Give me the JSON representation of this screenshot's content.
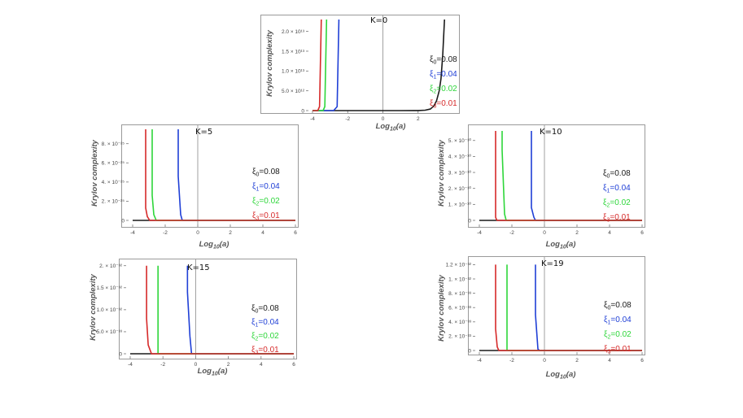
{
  "chart_data": [
    {
      "type": "line",
      "kappa_label": "K=0",
      "ylabel": "Krylov complexity",
      "xlabel": "Log10(a)",
      "xlim": [
        -4,
        4
      ],
      "xticks": [
        -4,
        -2,
        0,
        2
      ],
      "ylim": [
        0,
        23000000000000.0
      ],
      "yticks": [
        0,
        5000000000000.0,
        10000000000000.0,
        15000000000000.0,
        20000000000000.0
      ],
      "ytick_labels": [
        "0",
        "5.0 × 10¹²",
        "1.0 × 10¹³",
        "1.5 × 10¹³",
        "2.0 × 10¹³"
      ],
      "series": [
        {
          "name": "ξ0=0.08",
          "sub": "0",
          "val": "=0.08",
          "color": "#1a1a1a",
          "x": [
            -4,
            1.0,
            2.0,
            2.4,
            2.7,
            2.9,
            3.05,
            3.2,
            3.3,
            3.4,
            3.5
          ],
          "y": [
            0,
            0,
            10000000000.0,
            100000000000.0,
            400000000000.0,
            1200000000000.0,
            2500000000000.0,
            5000000000000.0,
            8000000000000.0,
            14000000000000.0,
            23000000000000.0
          ]
        },
        {
          "name": "ξ1=0.04",
          "sub": "1",
          "val": "=0.04",
          "color": "#1f3fd6",
          "x": [
            -4,
            -2.8,
            -2.6,
            -2.5
          ],
          "y": [
            0,
            0,
            1000000000000.0,
            23000000000000.0
          ]
        },
        {
          "name": "ξ2=0.02",
          "sub": "2",
          "val": "=0.02",
          "color": "#2ed63a",
          "x": [
            -4,
            -3.4,
            -3.3,
            -3.2
          ],
          "y": [
            0,
            0,
            1000000000000.0,
            23000000000000.0
          ]
        },
        {
          "name": "ξ3=0.01",
          "sub": "3",
          "val": "=0.01",
          "color": "#d62a2a",
          "x": [
            -4,
            -3.7,
            -3.6,
            -3.5
          ],
          "y": [
            0,
            0,
            1000000000000.0,
            23000000000000.0
          ]
        }
      ]
    },
    {
      "type": "line",
      "kappa_label": "K=5",
      "ylabel": "Krylov complexity",
      "xlabel": "Log10(a)",
      "xlim": [
        -4,
        6
      ],
      "xticks": [
        -4,
        -2,
        0,
        2,
        4,
        6
      ],
      "ylim": [
        0,
        9.5e-25
      ],
      "yticks": [
        0,
        2e-25,
        4e-25,
        6e-25,
        8e-25
      ],
      "ytick_labels": [
        "0",
        "2. × 10⁻²⁵",
        "4. × 10⁻²⁵",
        "6. × 10⁻²⁵",
        "8. × 10⁻²⁵"
      ],
      "series": [
        {
          "name": "ξ0=0.08",
          "sub": "0",
          "val": "=0.08",
          "color": "#1a1a1a",
          "x": [
            -4,
            6
          ],
          "y": [
            0,
            0
          ]
        },
        {
          "name": "ξ1=0.04",
          "sub": "1",
          "val": "=0.04",
          "color": "#1f3fd6",
          "x": [
            -1.2,
            -1.2,
            -1.05,
            -0.95,
            6
          ],
          "y": [
            9.5e-25,
            4.6e-25,
            6e-26,
            0,
            0
          ]
        },
        {
          "name": "ξ2=0.02",
          "sub": "2",
          "val": "=0.02",
          "color": "#2ed63a",
          "x": [
            -2.8,
            -2.8,
            -2.7,
            -2.55,
            6
          ],
          "y": [
            9.5e-25,
            2.6e-25,
            6e-26,
            0,
            0
          ]
        },
        {
          "name": "ξ3=0.01",
          "sub": "3",
          "val": "=0.01",
          "color": "#d62a2a",
          "x": [
            -3.2,
            -3.2,
            -3.1,
            -2.95,
            6
          ],
          "y": [
            9.5e-25,
            1.3e-25,
            4e-26,
            0,
            0
          ]
        }
      ]
    },
    {
      "type": "line",
      "kappa_label": "K=10",
      "ylabel": "Krylov complexity",
      "xlabel": "Log10(a)",
      "xlim": [
        -4,
        6
      ],
      "xticks": [
        -4,
        -2,
        0,
        2,
        4,
        6
      ],
      "ylim": [
        0,
        5.7e-30
      ],
      "yticks": [
        0,
        1e-30,
        2e-30,
        3e-30,
        4e-30,
        5e-30
      ],
      "ytick_labels": [
        "0",
        "1. × 10⁻³⁰",
        "2. × 10⁻³⁰",
        "3. × 10⁻³⁰",
        "4. × 10⁻³⁰",
        "5. × 10⁻³⁰"
      ],
      "series": [
        {
          "name": "ξ0=0.08",
          "sub": "0",
          "val": "=0.08",
          "color": "#1a1a1a",
          "x": [
            -4,
            6
          ],
          "y": [
            0,
            0
          ]
        },
        {
          "name": "ξ1=0.04",
          "sub": "1",
          "val": "=0.04",
          "color": "#1f3fd6",
          "x": [
            -0.8,
            -0.8,
            -0.65,
            -0.55,
            6
          ],
          "y": [
            5.6e-30,
            8e-31,
            2e-31,
            0,
            0
          ]
        },
        {
          "name": "ξ2=0.02",
          "sub": "2",
          "val": "=0.02",
          "color": "#2ed63a",
          "x": [
            -2.6,
            -2.6,
            -2.45,
            -2.35,
            6
          ],
          "y": [
            5.6e-30,
            4.4e-30,
            4e-31,
            0,
            0
          ]
        },
        {
          "name": "ξ3=0.01",
          "sub": "3",
          "val": "=0.01",
          "color": "#d62a2a",
          "x": [
            -3.0,
            -3.0,
            -2.95,
            -2.9,
            6
          ],
          "y": [
            5.6e-30,
            2e-31,
            6e-32,
            0,
            0
          ]
        }
      ]
    },
    {
      "type": "line",
      "kappa_label": "K=15",
      "ylabel": "Krylov complexity",
      "xlabel": "Log10(a)",
      "xlim": [
        -4,
        6
      ],
      "xticks": [
        -4,
        -2,
        0,
        2,
        4,
        6
      ],
      "ylim": [
        0,
        2.05e-32
      ],
      "yticks": [
        0,
        5e-33,
        1e-32,
        1.5e-32,
        2e-32
      ],
      "ytick_labels": [
        "0",
        "5.0 × 10⁻³³",
        "1.0 × 10⁻³²",
        "1.5 × 10⁻³²",
        "2. × 10⁻³²"
      ],
      "series": [
        {
          "name": "ξ0=0.08",
          "sub": "0",
          "val": "=0.08",
          "color": "#1a1a1a",
          "x": [
            -4,
            6
          ],
          "y": [
            0,
            0
          ]
        },
        {
          "name": "ξ1=0.04",
          "sub": "1",
          "val": "=0.04",
          "color": "#1f3fd6",
          "x": [
            -0.5,
            -0.5,
            -0.35,
            -0.25,
            6
          ],
          "y": [
            2e-32,
            1.4e-32,
            4e-33,
            0,
            0
          ]
        },
        {
          "name": "ξ2=0.02",
          "sub": "2",
          "val": "=0.02",
          "color": "#2ed63a",
          "x": [
            -2.3,
            -2.3,
            -2.3,
            6
          ],
          "y": [
            2e-32,
            1e-33,
            0,
            0
          ]
        },
        {
          "name": "ξ3=0.01",
          "sub": "3",
          "val": "=0.01",
          "color": "#d62a2a",
          "x": [
            -3.0,
            -3.0,
            -2.9,
            -2.7,
            6
          ],
          "y": [
            2e-32,
            8e-33,
            2e-33,
            0,
            0
          ]
        }
      ]
    },
    {
      "type": "line",
      "kappa_label": "K=19",
      "ylabel": "Krylov complexity",
      "xlabel": "Log10(a)",
      "xlim": [
        -4,
        6
      ],
      "xticks": [
        -4,
        -2,
        0,
        2,
        4,
        6
      ],
      "ylim": [
        0,
        1.25e-32
      ],
      "yticks": [
        0,
        2e-33,
        4e-33,
        6e-33,
        8e-33,
        1e-32,
        1.2e-32
      ],
      "ytick_labels": [
        "0",
        "2. × 10⁻³³",
        "4. × 10⁻³³",
        "6. × 10⁻³³",
        "8. × 10⁻³³",
        "1. × 10⁻³²",
        "1.2 × 10⁻³²"
      ],
      "series": [
        {
          "name": "ξ0=0.08",
          "sub": "0",
          "val": "=0.08",
          "color": "#1a1a1a",
          "x": [
            -4,
            6
          ],
          "y": [
            0,
            0
          ]
        },
        {
          "name": "ξ1=0.04",
          "sub": "1",
          "val": "=0.04",
          "color": "#1f3fd6",
          "x": [
            -0.55,
            -0.55,
            -0.4,
            -0.3,
            6
          ],
          "y": [
            1.2e-32,
            5e-33,
            2e-34,
            0,
            0
          ]
        },
        {
          "name": "ξ2=0.02",
          "sub": "2",
          "val": "=0.02",
          "color": "#2ed63a",
          "x": [
            -2.3,
            -2.3,
            -2.3,
            6
          ],
          "y": [
            1.2e-32,
            1e-34,
            0,
            0
          ]
        },
        {
          "name": "ξ3=0.01",
          "sub": "3",
          "val": "=0.01",
          "color": "#d62a2a",
          "x": [
            -3.0,
            -3.0,
            -2.9,
            -2.8,
            6
          ],
          "y": [
            1.2e-32,
            3e-33,
            5e-34,
            0,
            0
          ]
        }
      ]
    }
  ]
}
